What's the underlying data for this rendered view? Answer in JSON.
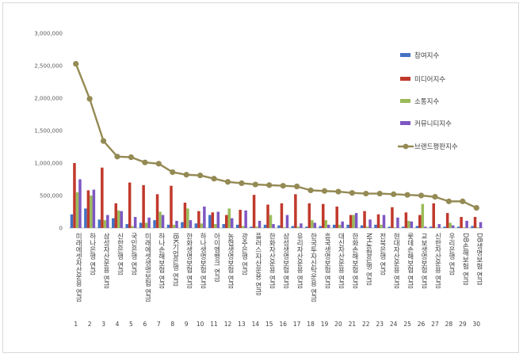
{
  "chart_data": {
    "type": "bar",
    "categories": [
      "미래에셋자산운용 연금",
      "하나은행 연금",
      "삼성자산운용 연금",
      "신한은행 연금",
      "국민은행 연금",
      "미래에셋생명보험 연금",
      "하나손해보험 연금",
      "IBK기업은행 연금",
      "한화생명보험 연금",
      "하나생명보험 연금",
      "아이엠뱅크 연금",
      "농협생명보험 연금",
      "광주은행 연금",
      "플러스자산운용 연금",
      "한화자산운용 연금",
      "삼성생명보험 연금",
      "유리자산운용 연금",
      "한국투자신탁운용 연금",
      "흥국생명보험 연금",
      "대신자산운용 연금",
      "한화손해보험 연금",
      "NH농협은행 연금",
      "전북은행 연금",
      "현대자산운용 연금",
      "롯데손해보험 연금",
      "교보생명보험 연금",
      "신한자산운용 연금",
      "우리은행 연금",
      "DB손해보험 연금",
      "DB생명보험 연금"
    ],
    "numbers": [
      "1",
      "2",
      "3",
      "4",
      "5",
      "6",
      "7",
      "8",
      "9",
      "10",
      "11",
      "12",
      "13",
      "14",
      "15",
      "16",
      "17",
      "18",
      "19",
      "20",
      "21",
      "22",
      "23",
      "24",
      "25",
      "26",
      "27",
      "28",
      "29",
      "30"
    ],
    "series": [
      {
        "name": "참여지수",
        "color": "#4472C4",
        "type": "bar",
        "values": [
          210000,
          300000,
          130000,
          150000,
          60000,
          80000,
          120000,
          50000,
          90000,
          70000,
          200000,
          60000,
          50000,
          20000,
          50000,
          40000,
          30000,
          20000,
          30000,
          50000,
          50000,
          40000,
          50000,
          20000,
          20000,
          30000,
          20000,
          20000,
          20000,
          30000
        ]
      },
      {
        "name": "미디어지수",
        "color": "#C0392B",
        "type": "bar",
        "values": [
          1000000,
          580000,
          930000,
          380000,
          700000,
          660000,
          520000,
          650000,
          390000,
          260000,
          240000,
          200000,
          280000,
          510000,
          360000,
          380000,
          520000,
          380000,
          370000,
          330000,
          200000,
          260000,
          210000,
          320000,
          240000,
          200000,
          380000,
          230000,
          170000,
          170000
        ]
      },
      {
        "name": "소통지수",
        "color": "#9BBB59",
        "type": "bar",
        "values": [
          550000,
          500000,
          120000,
          270000,
          30000,
          80000,
          250000,
          50000,
          300000,
          70000,
          60000,
          300000,
          30000,
          20000,
          200000,
          10000,
          20000,
          120000,
          120000,
          50000,
          200000,
          20000,
          50000,
          10000,
          110000,
          370000,
          10000,
          80000,
          10000,
          10000
        ]
      },
      {
        "name": "커뮤니티지수",
        "color": "#7E57C2",
        "type": "bar",
        "values": [
          750000,
          590000,
          200000,
          260000,
          170000,
          160000,
          200000,
          110000,
          120000,
          330000,
          250000,
          150000,
          270000,
          110000,
          60000,
          200000,
          70000,
          80000,
          50000,
          100000,
          230000,
          130000,
          200000,
          160000,
          100000,
          20000,
          60000,
          40000,
          110000,
          90000
        ]
      },
      {
        "name": "브랜드평판지수",
        "color": "#948A54",
        "type": "line",
        "values": [
          2530000,
          1990000,
          1340000,
          1100000,
          1090000,
          1010000,
          990000,
          860000,
          820000,
          810000,
          760000,
          710000,
          690000,
          670000,
          660000,
          650000,
          640000,
          580000,
          570000,
          560000,
          540000,
          530000,
          530000,
          520000,
          510000,
          500000,
          480000,
          410000,
          410000,
          310000
        ]
      }
    ],
    "ylim": [
      0,
      3000000
    ],
    "yticks": [
      "0",
      "500,000",
      "1,000,000",
      "1,500,000",
      "2,000,000",
      "2,500,000",
      "3,000,000"
    ],
    "legend_position": "right",
    "grid": false
  }
}
